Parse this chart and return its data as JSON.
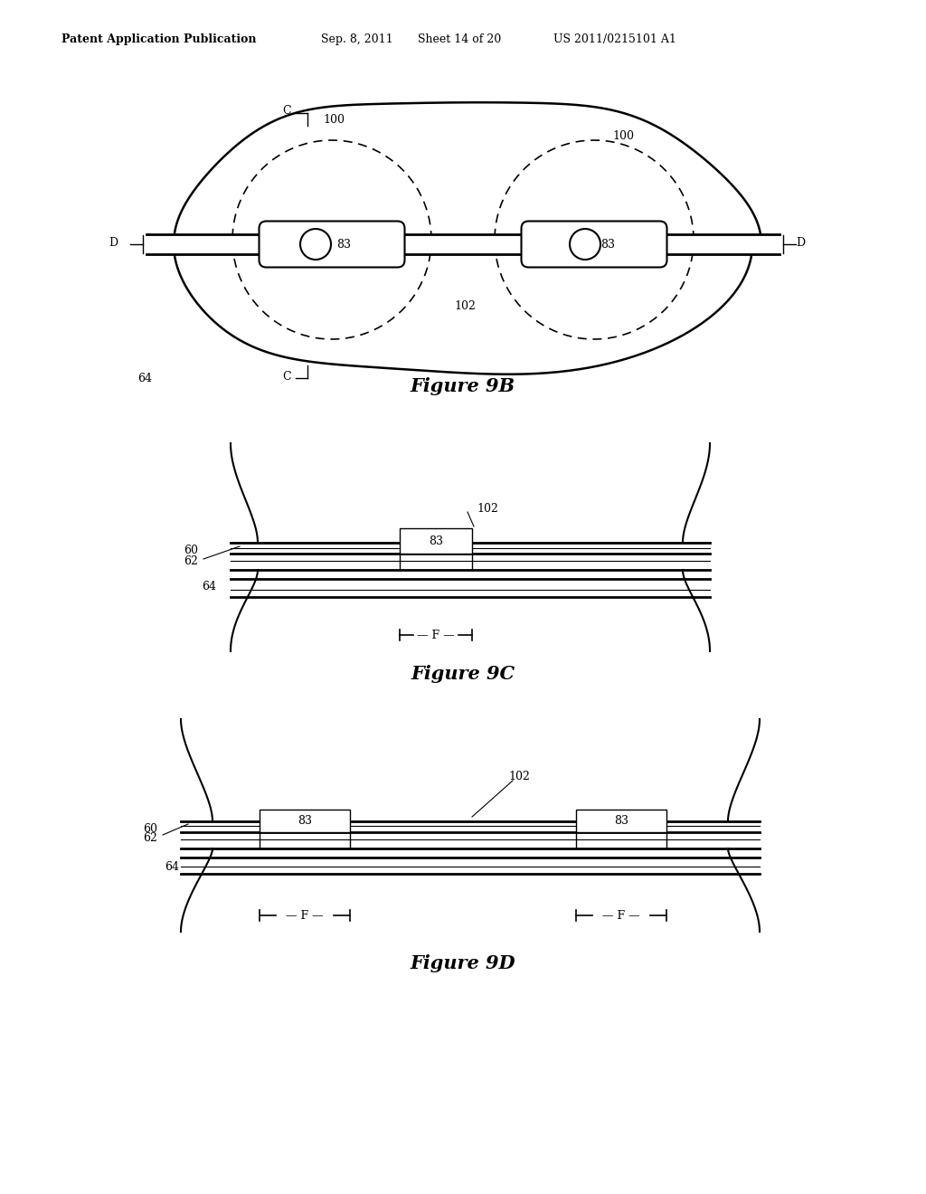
{
  "bg_color": "#ffffff",
  "line_color": "#000000",
  "header_text": "Patent Application Publication",
  "header_date": "Sep. 8, 2011",
  "header_sheet": "Sheet 14 of 20",
  "header_patent": "US 2011/0215101 A1",
  "fig9b_title": "Figure 9B",
  "fig9c_title": "Figure 9C",
  "fig9d_title": "Figure 9D"
}
